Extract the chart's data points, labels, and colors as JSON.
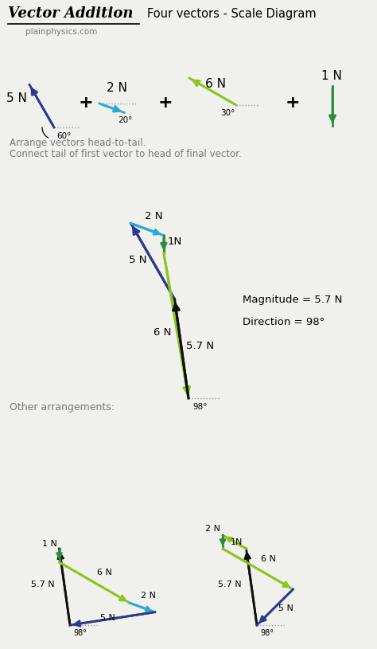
{
  "bg_color": "#F0F0EC",
  "dark_blue": "#2B3A8C",
  "cyan": "#29ABD4",
  "green": "#8FC31F",
  "dark_green": "#2E8B3A",
  "black": "#111111",
  "gray": "#777777",
  "title_cursive": "Vector Addition",
  "title_right": "Four vectors - Scale Diagram",
  "subtitle": "plainphysics.com",
  "line1": "Arrange vectors head-to-tail.",
  "line2": "Connect tail of first vector to head of final vector.",
  "mag_text": "Magnitude = 5.7 N",
  "dir_text": "Direction = 98°",
  "other_text": "Other arrangements:"
}
